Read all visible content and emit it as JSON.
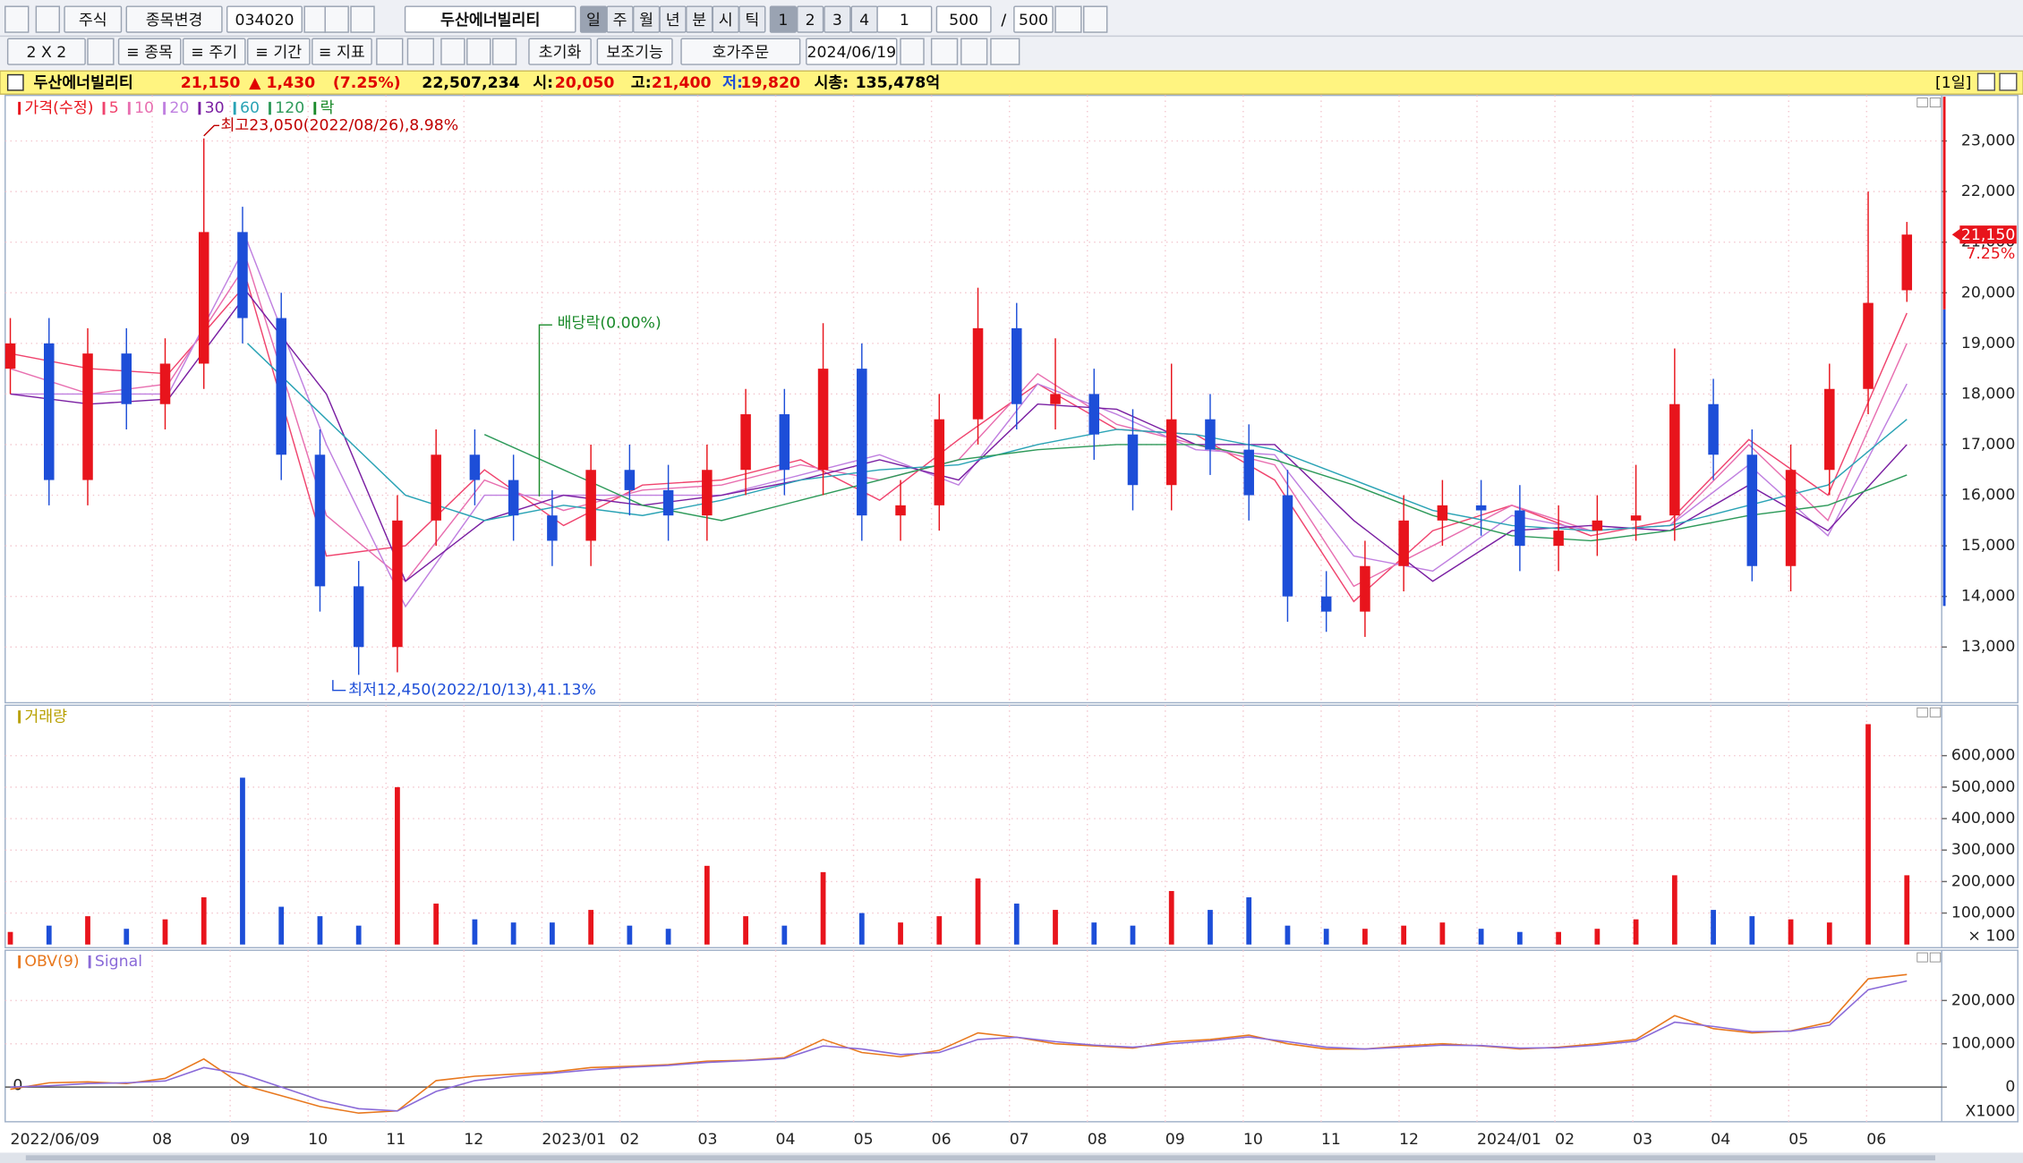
{
  "toolbar": {
    "row1": {
      "market": "주식",
      "change_item": "종목변경",
      "code": "034020",
      "name": "두산에너빌리티",
      "periods": [
        "일",
        "주",
        "월",
        "년",
        "분",
        "시",
        "틱"
      ],
      "layouts": [
        "1",
        "2",
        "3",
        "4"
      ],
      "count_unit": "1",
      "count": "500",
      "count_sep": "/",
      "count_max": "500"
    },
    "row2": {
      "grid": "2 X 2",
      "items": "≡ 종목",
      "cycle": "≡ 주기",
      "range": "≡ 기간",
      "indicator": "≡ 지표",
      "reset": "초기화",
      "aux": "보조기능",
      "order": "호가주문",
      "date": "2024/06/19"
    }
  },
  "info_bar": {
    "name": "두산에너빌리티",
    "price": "21,150",
    "change": "▲ 1,430",
    "change_pct": "(7.25%)",
    "volume": "22,507,234",
    "open_label": "시:",
    "open": "20,050",
    "high_label": "고:",
    "high": "21,400",
    "low_label": "저:",
    "low": "19,820",
    "cap_label": "시총:",
    "cap": "135,478억",
    "period": "[1일]"
  },
  "x_axis": {
    "labels": [
      "2022/06/09",
      "08",
      "09",
      "10",
      "11",
      "12",
      "2023/01",
      "02",
      "03",
      "04",
      "05",
      "06",
      "07",
      "08",
      "09",
      "10",
      "11",
      "12",
      "2024/01",
      "02",
      "03",
      "04",
      "05",
      "06"
    ]
  },
  "chart_data": [
    {
      "type": "candlestick",
      "legend_title": "가격(수정)",
      "up_color": "#e8141c",
      "down_color": "#1d4ed8",
      "open": [
        18500,
        19000,
        16300,
        18800,
        17800,
        18600,
        21200,
        19500,
        16800,
        14200,
        13000,
        15500,
        16800,
        16300,
        15600,
        15100,
        16500,
        16100,
        15600,
        16500,
        17600,
        16500,
        18500,
        15600,
        15800,
        17500,
        19300,
        17800,
        18000,
        17200,
        16200,
        17500,
        16900,
        16000,
        14000,
        13700,
        14600,
        15500,
        15800,
        15700,
        15000,
        15300,
        15500,
        15600,
        17800,
        16800,
        14600,
        16500,
        18100,
        20050
      ],
      "high": [
        19500,
        19500,
        19300,
        19300,
        19100,
        23050,
        21700,
        20000,
        17300,
        14700,
        16000,
        17300,
        17300,
        16800,
        16100,
        17000,
        17000,
        16600,
        17000,
        18100,
        18100,
        19400,
        19000,
        16300,
        18000,
        20100,
        19800,
        19100,
        18500,
        17700,
        18600,
        18000,
        17400,
        16500,
        14500,
        15100,
        16000,
        16300,
        16300,
        16200,
        15800,
        16000,
        16600,
        18900,
        18300,
        17300,
        17000,
        18600,
        22000,
        21400
      ],
      "low": [
        18000,
        15800,
        15800,
        17300,
        17300,
        18100,
        19000,
        16300,
        13700,
        12450,
        12500,
        15000,
        15800,
        15100,
        14600,
        14600,
        15600,
        15100,
        15100,
        16000,
        16000,
        16000,
        15100,
        15100,
        15300,
        17000,
        17300,
        17300,
        16700,
        15700,
        15700,
        16400,
        15500,
        13500,
        13300,
        13200,
        14100,
        15000,
        15200,
        14500,
        14500,
        14800,
        15100,
        15100,
        16300,
        14300,
        14100,
        16000,
        17600,
        19820
      ],
      "close": [
        19000,
        16300,
        18800,
        17800,
        18600,
        21200,
        19500,
        16800,
        14200,
        13000,
        15500,
        16800,
        16300,
        15600,
        15100,
        16500,
        16100,
        15600,
        16500,
        17600,
        16500,
        18500,
        15600,
        15800,
        17500,
        19300,
        17800,
        18000,
        17200,
        16200,
        17500,
        16900,
        16000,
        14000,
        13700,
        14600,
        15500,
        15800,
        15700,
        15000,
        15300,
        15500,
        15600,
        17800,
        16800,
        14600,
        16500,
        18100,
        19800,
        21150
      ],
      "series": [
        {
          "name": "5",
          "color": "#f0446e",
          "values": [
            18800,
            18500,
            18400,
            20200,
            14800,
            15000,
            16500,
            15400,
            16200,
            16300,
            16700,
            15900,
            17100,
            18200,
            17300,
            17200,
            16300,
            13900,
            15300,
            15800,
            15200,
            15500,
            17100,
            16000,
            19600
          ]
        },
        {
          "name": "10",
          "color": "#e86fb0",
          "values": [
            18500,
            18000,
            18200,
            20600,
            15600,
            14300,
            16300,
            15700,
            16100,
            16200,
            16600,
            16300,
            16700,
            18400,
            17400,
            17000,
            16600,
            14200,
            15000,
            15800,
            15300,
            15400,
            17000,
            15500,
            19000
          ]
        },
        {
          "name": "20",
          "color": "#c080e0",
          "values": [
            18000,
            18000,
            18000,
            21000,
            17000,
            13800,
            16000,
            16000,
            16000,
            16000,
            16400,
            16800,
            16200,
            18200,
            17600,
            16900,
            16800,
            14800,
            14500,
            15600,
            15300,
            15400,
            16600,
            15200,
            18200
          ]
        },
        {
          "name": "30",
          "color": "#7a1fa2",
          "values": [
            18000,
            17800,
            17900,
            20000,
            18000,
            14300,
            15500,
            16000,
            15800,
            16000,
            16300,
            16700,
            16300,
            17800,
            17700,
            17000,
            17000,
            15500,
            14300,
            15300,
            15400,
            15300,
            16200,
            15300,
            17000
          ]
        },
        {
          "name": "60",
          "color": "#2aa3b5",
          "values": [
            null,
            null,
            null,
            19000,
            17500,
            16000,
            15500,
            15800,
            15600,
            15900,
            16300,
            16500,
            16600,
            17000,
            17300,
            17200,
            16900,
            16300,
            15700,
            15400,
            15300,
            15400,
            15800,
            16200,
            17500
          ]
        },
        {
          "name": "120",
          "color": "#2e9a5a",
          "values": [
            null,
            null,
            null,
            null,
            null,
            null,
            17200,
            16500,
            15800,
            15500,
            15900,
            16300,
            16700,
            16900,
            17000,
            17000,
            16700,
            16200,
            15600,
            15200,
            15100,
            15300,
            15600,
            15800,
            16400
          ]
        }
      ],
      "event_legend": {
        "name": "락",
        "color": "#1a8a2a"
      },
      "ylim": [
        11900,
        23900
      ],
      "yticks": [
        {
          "value": 13000,
          "label": "13,000"
        },
        {
          "value": 14000,
          "label": "14,000"
        },
        {
          "value": 15000,
          "label": "15,000"
        },
        {
          "value": 16000,
          "label": "16,000"
        },
        {
          "value": 17000,
          "label": "17,000"
        },
        {
          "value": 18000,
          "label": "18,000"
        },
        {
          "value": 19000,
          "label": "19,000"
        },
        {
          "value": 20000,
          "label": "20,000"
        },
        {
          "value": 21000,
          "label": "21,000"
        },
        {
          "value": 22000,
          "label": "22,000"
        },
        {
          "value": 23000,
          "label": "23,000"
        }
      ],
      "grid": true,
      "annotations": {
        "high": "최고23,050(2022/08/26),8.98%",
        "low": "최저12,450(2022/10/13),41.13%",
        "dividend": "배당락(0.00%)"
      },
      "last_label": "21,150",
      "last_change": "7.25%"
    },
    {
      "type": "bar",
      "legend_title": "거래량",
      "legend_color": "#b8a000",
      "up_color": "#e8141c",
      "down_color": "#1d4ed8",
      "values": [
        40000,
        60000,
        90000,
        50000,
        80000,
        150000,
        530000,
        120000,
        90000,
        60000,
        500000,
        130000,
        80000,
        70000,
        70000,
        110000,
        60000,
        50000,
        250000,
        90000,
        60000,
        230000,
        100000,
        70000,
        90000,
        210000,
        130000,
        110000,
        70000,
        60000,
        170000,
        110000,
        150000,
        60000,
        50000,
        50000,
        60000,
        70000,
        50000,
        40000,
        40000,
        50000,
        80000,
        220000,
        110000,
        90000,
        80000,
        70000,
        700000,
        220000
      ],
      "ylim": [
        -10000,
        760000
      ],
      "yticks": [
        {
          "value": 100000,
          "label": "100,000"
        },
        {
          "value": 200000,
          "label": "200,000"
        },
        {
          "value": 300000,
          "label": "300,000"
        },
        {
          "value": 400000,
          "label": "400,000"
        },
        {
          "value": 500000,
          "label": "500,000"
        },
        {
          "value": 600000,
          "label": "600,000"
        }
      ],
      "unit_label": "× 100",
      "grid": true
    },
    {
      "type": "line",
      "series": [
        {
          "name": "OBV(9)",
          "color": "#e8781e",
          "values": [
            -5000,
            10000,
            12000,
            8000,
            20000,
            65000,
            5000,
            -20000,
            -45000,
            -60000,
            -55000,
            15000,
            25000,
            30000,
            35000,
            45000,
            48000,
            52000,
            60000,
            62000,
            68000,
            110000,
            80000,
            70000,
            85000,
            125000,
            115000,
            100000,
            95000,
            90000,
            105000,
            110000,
            120000,
            100000,
            88000,
            88000,
            95000,
            100000,
            95000,
            88000,
            92000,
            100000,
            110000,
            165000,
            135000,
            125000,
            130000,
            150000,
            250000,
            260000
          ]
        },
        {
          "name": "Signal",
          "color": "#8a6ad8",
          "values": [
            0,
            3000,
            8000,
            10000,
            14000,
            45000,
            30000,
            0,
            -30000,
            -50000,
            -55000,
            -10000,
            15000,
            25000,
            32000,
            40000,
            46000,
            50000,
            57000,
            61000,
            66000,
            95000,
            88000,
            75000,
            80000,
            110000,
            115000,
            105000,
            97000,
            92000,
            100000,
            107000,
            116000,
            105000,
            92000,
            88000,
            92000,
            97000,
            96000,
            90000,
            91000,
            97000,
            106000,
            150000,
            140000,
            128000,
            129000,
            143000,
            225000,
            245000
          ]
        }
      ],
      "ylim": [
        -80000,
        316000
      ],
      "yticks": [
        0,
        {
          "value": 100000,
          "label": "100,000"
        },
        {
          "value": 200000,
          "label": "200,000"
        }
      ],
      "unit_label": "X1000",
      "grid": true
    }
  ]
}
